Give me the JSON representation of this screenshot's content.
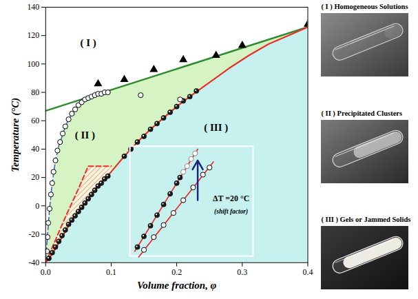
{
  "chart_data": {
    "type": "scatter",
    "xlabel": "Volume fraction, φ",
    "ylabel": "Temperature (°C)",
    "xlim": [
      0,
      0.4
    ],
    "ylim": [
      -40,
      140
    ],
    "xticks": [
      {
        "value": 0,
        "label": "0.0"
      },
      {
        "value": 0.1,
        "label": "0.1"
      },
      {
        "value": 0.2,
        "label": "0.2"
      },
      {
        "value": 0.3,
        "label": "0.3"
      },
      {
        "value": 0.4,
        "label": "0.4"
      }
    ],
    "yticks": [
      -40,
      -20,
      0,
      20,
      40,
      60,
      80,
      100,
      120,
      140
    ],
    "fills": {
      "region_III": "#c6f1ef",
      "region_II": "#d5f3c3",
      "hatch": "#c8955a"
    },
    "curves": {
      "upper": {
        "type": "line",
        "color": "#2e8b2e",
        "line_style": "solid",
        "x": [
          0,
          0.4
        ],
        "y": [
          67,
          126
        ]
      },
      "lower": {
        "type": "line",
        "color": "#e8302a",
        "line_style": "solid",
        "x": [
          0,
          0.01,
          0.02,
          0.03,
          0.04,
          0.05,
          0.06,
          0.07,
          0.08,
          0.09,
          0.1,
          0.12,
          0.14,
          0.16,
          0.18,
          0.2,
          0.22,
          0.25,
          0.28,
          0.31,
          0.34,
          0.37,
          0.4
        ],
        "y": [
          -40,
          -34,
          -26,
          -18,
          -10,
          -4,
          2,
          8,
          14,
          19,
          24,
          35,
          45,
          54,
          62,
          70,
          77,
          87,
          97,
          106,
          114,
          120,
          126
        ]
      },
      "cluster": {
        "type": "line",
        "color": "#3a63c8",
        "line_style": "dashed",
        "x": [
          0,
          0.003,
          0.006,
          0.01,
          0.015,
          0.02,
          0.03,
          0.04,
          0.05,
          0.06,
          0.07,
          0.08,
          0.095
        ],
        "y": [
          -38,
          -20,
          -2,
          16,
          32,
          42,
          56,
          65,
          71,
          75,
          77,
          79,
          81
        ]
      },
      "hatch": {
        "type": "line",
        "color": "#e8302a",
        "line_style": "dashed",
        "x": [
          0,
          0.03,
          0.05,
          0.065,
          0.1
        ],
        "y": [
          -40,
          -8,
          12,
          28,
          28
        ]
      }
    },
    "points": [
      {
        "type": "scatter",
        "marker": "triangle",
        "color": "#000000",
        "x": [
          0.08,
          0.12,
          0.165,
          0.21,
          0.26,
          0.3,
          0.4
        ],
        "y": [
          86,
          89,
          96,
          103,
          106,
          113,
          128
        ]
      },
      {
        "type": "scatter",
        "marker": "filled circle",
        "color": "#1a1a1a",
        "x": [
          0.005,
          0.01,
          0.015,
          0.02,
          0.025,
          0.03,
          0.035,
          0.04,
          0.045,
          0.05,
          0.055,
          0.06,
          0.065,
          0.07,
          0.075,
          0.08,
          0.085,
          0.09,
          0.095,
          0.12,
          0.13,
          0.14,
          0.15,
          0.16,
          0.17,
          0.18,
          0.19,
          0.2,
          0.21,
          0.22,
          0.23
        ],
        "y": [
          -37,
          -33,
          -29,
          -25,
          -21,
          -17,
          -13,
          -10,
          -7,
          -4,
          -1,
          2,
          5,
          8,
          11,
          14,
          16,
          19,
          21,
          35,
          40,
          45,
          49,
          54,
          58,
          62,
          66,
          70,
          74,
          77,
          81
        ]
      },
      {
        "type": "scatter",
        "marker": "open circle",
        "color": "#000000",
        "x": [
          0.002,
          0.003,
          0.004,
          0.006,
          0.008,
          0.01,
          0.012,
          0.015,
          0.018,
          0.022,
          0.026,
          0.03,
          0.035,
          0.04,
          0.045,
          0.05,
          0.055,
          0.06,
          0.065,
          0.07,
          0.075,
          0.08,
          0.085,
          0.09,
          0.095,
          0.145,
          0.205
        ],
        "y": [
          -32,
          -22,
          -12,
          -2,
          8,
          16,
          24,
          32,
          39,
          45,
          51,
          56,
          61,
          65,
          68,
          71,
          73,
          75,
          76,
          77,
          78,
          79,
          79,
          80,
          80,
          78,
          75
        ]
      }
    ],
    "annotations": [
      {
        "text": "( I )",
        "x": 0.065,
        "y": 115
      },
      {
        "text": "( II )",
        "x": 0.06,
        "y": 50
      },
      {
        "text": "( III )",
        "x": 0.26,
        "y": 55
      }
    ],
    "inset": {
      "xlim": [
        0.129,
        0.317
      ],
      "ylim": [
        -35.6,
        41.8
      ],
      "color": "#ffffff",
      "lines": [
        {
          "type": "line",
          "color": "#e8302a",
          "line_style": "solid",
          "x": [
            0.136,
            0.232
          ],
          "y": [
            -32,
            40
          ]
        },
        {
          "type": "line",
          "color": "#e8302a",
          "line_style": "solid",
          "x": [
            0.142,
            0.256
          ],
          "y": [
            -36,
            31
          ]
        }
      ],
      "points": [
        {
          "type": "scatter",
          "marker": "filled circle",
          "color": "#1a1a1a",
          "x": [
            0.14,
            0.15,
            0.16,
            0.17,
            0.18,
            0.19,
            0.2,
            0.205
          ],
          "y": [
            -29,
            -21.5,
            -14,
            -6.5,
            1,
            8.5,
            16,
            20
          ]
        },
        {
          "type": "scatter",
          "marker": "open circle",
          "color": "#8a8a8a",
          "x": [
            0.21,
            0.216,
            0.222,
            0.228
          ],
          "y": [
            24,
            28,
            33,
            37
          ]
        },
        {
          "type": "scatter",
          "marker": "open circle",
          "color": "#000000",
          "x": [
            0.15,
            0.165,
            0.18,
            0.195,
            0.21,
            0.225,
            0.24,
            0.25
          ],
          "y": [
            -31,
            -22,
            -13.5,
            -5,
            4,
            13,
            22,
            27
          ]
        }
      ],
      "arrow": {
        "x": 0.232,
        "y1": 4,
        "y2": 32,
        "color": "#1a237e"
      },
      "annotations": [
        {
          "text": "ΔT =20 °C",
          "x": 0.283,
          "y": 5
        },
        {
          "text": "(shift factor)",
          "x": 0.283,
          "y": -4
        }
      ]
    }
  },
  "photos": [
    {
      "label": "( I ) Homogeneous Solutions"
    },
    {
      "label": "( II ) Precipitated Clusters"
    },
    {
      "label": "( III ) Gels or Jammed Solids"
    }
  ]
}
